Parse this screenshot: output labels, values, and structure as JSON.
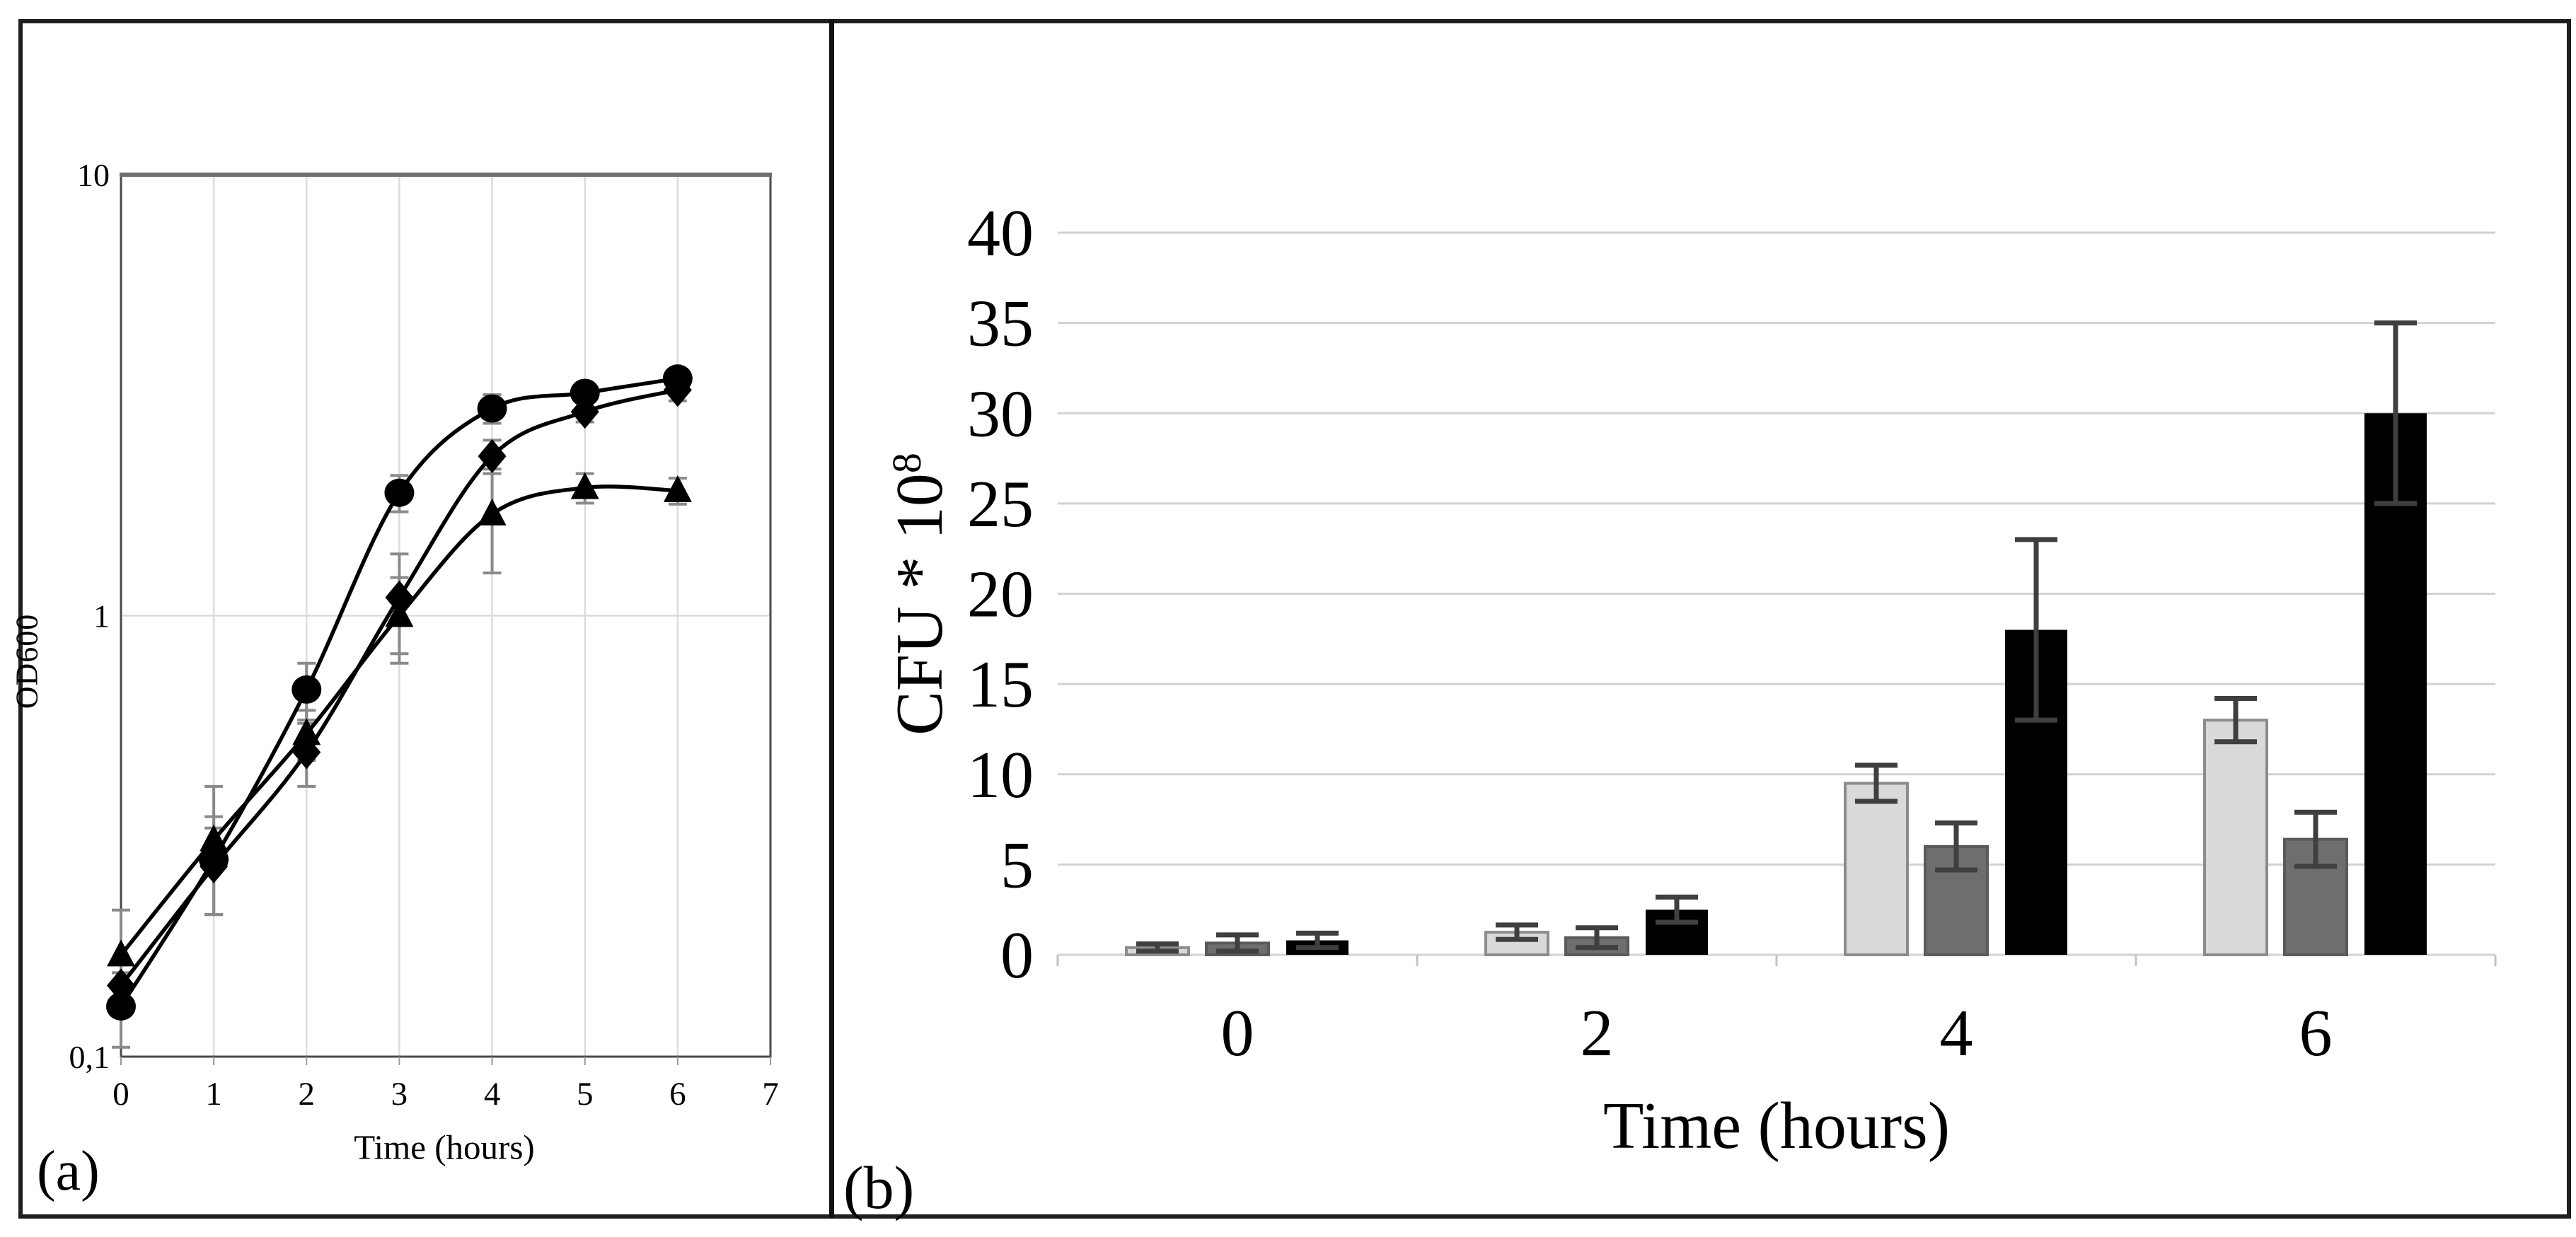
{
  "figure": {
    "background": "#ffffff",
    "border_color": "#1f1f1f",
    "divider_color": "#121212"
  },
  "panel_a": {
    "letter": "(a)",
    "xlabel": "Time (hours)",
    "ylabel": "OD600"
  },
  "panel_b": {
    "letter": "(b)",
    "xlabel": "Time (hours)",
    "ylabel_main": "CFU * 10",
    "ylabel_sup": "8"
  },
  "chart_data": [
    {
      "panel": "a",
      "type": "line",
      "title": "",
      "xlabel": "Time (hours)",
      "ylabel": "OD600",
      "y_scale": "log10",
      "ylim": [
        0.1,
        10
      ],
      "xlim": [
        0,
        7
      ],
      "grid": "vertical gridlines at each hour; horizontal gridline at OD 1",
      "x": [
        0,
        1,
        2,
        3,
        4,
        5,
        6
      ],
      "x_tick_labels": [
        "0",
        "1",
        "2",
        "3",
        "4",
        "5",
        "6",
        "7"
      ],
      "x_tick_values": [
        0,
        1,
        2,
        3,
        4,
        5,
        6,
        7
      ],
      "y_tick_labels": [
        {
          "value": 10,
          "label": "10"
        },
        {
          "value": 1,
          "label": "1"
        },
        {
          "value": 0.1,
          "label": "0,1"
        }
      ],
      "line_color": "#000000",
      "error_bar_color": "#8a8a8a",
      "series": [
        {
          "name": "series-circle",
          "marker": "circle",
          "values": [
            0.13,
            0.28,
            0.68,
            1.9,
            2.95,
            3.2,
            3.45
          ],
          "errors": [
            0.025,
            0.07,
            0.1,
            0.18,
            0.22,
            0.15,
            0.12
          ]
        },
        {
          "name": "series-diamond",
          "marker": "diamond",
          "values": [
            0.145,
            0.27,
            0.49,
            1.1,
            2.3,
            2.9,
            3.25
          ],
          "errors": [
            0.02,
            0.06,
            0.08,
            0.28,
            0.2,
            0.15,
            0.18
          ]
        },
        {
          "name": "series-triangle",
          "marker": "triangle",
          "values": [
            0.17,
            0.31,
            0.54,
            1.0,
            1.7,
            1.95,
            1.92
          ],
          "errors": [
            0.045,
            0.1,
            0.07,
            0.22,
            0.45,
            0.15,
            0.13
          ]
        }
      ]
    },
    {
      "panel": "b",
      "type": "bar",
      "title": "",
      "xlabel": "Time (hours)",
      "ylabel": "CFU * 10^8",
      "ylim": [
        0,
        40
      ],
      "y_tick_step": 5,
      "y_tick_labels": [
        "0",
        "5",
        "10",
        "15",
        "20",
        "25",
        "30",
        "35",
        "40"
      ],
      "grid": "horizontal gridlines every 5 units",
      "categories": [
        "0",
        "2",
        "4",
        "6"
      ],
      "gridline_color": "#d2d2d2",
      "error_bar_color": "#3f3f3f",
      "series": [
        {
          "name": "series-light-gray",
          "fill": "#d9d9d9",
          "border": "#8c8c8c",
          "values": [
            0.4,
            1.25,
            9.5,
            13
          ],
          "errors": [
            0.2,
            0.4,
            1.0,
            1.2
          ]
        },
        {
          "name": "series-medium-gray",
          "fill": "#6e6e6e",
          "border": "#5a5a5a",
          "values": [
            0.65,
            0.95,
            6.0,
            6.4
          ],
          "errors": [
            0.45,
            0.55,
            1.3,
            1.5
          ]
        },
        {
          "name": "series-black",
          "fill": "#000000",
          "border": "#000000",
          "values": [
            0.8,
            2.5,
            18.0,
            30.0
          ],
          "errors": [
            0.4,
            0.7,
            5.0,
            5.0
          ]
        }
      ]
    }
  ]
}
